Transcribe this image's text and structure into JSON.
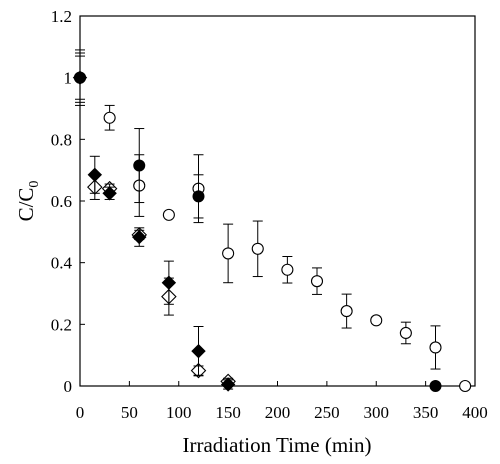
{
  "chart_data": {
    "type": "scatter",
    "title": "",
    "xlabel": "Irradiation Time  (min)",
    "ylabel_main": "C/C",
    "ylabel_sub": "0",
    "xlim": [
      0,
      400
    ],
    "ylim": [
      0,
      1.2
    ],
    "x_ticks": [
      "0",
      "50",
      "100",
      "150",
      "200",
      "250",
      "300",
      "350",
      "400"
    ],
    "y_ticks": [
      "0",
      "0.2",
      "0.4",
      "0.6",
      "0.8",
      "1",
      "1.2"
    ],
    "grid": false,
    "legend": "none",
    "series": [
      {
        "marker": "open-circle",
        "points": [
          {
            "x": 0,
            "y": 1.0,
            "err": 0.08
          },
          {
            "x": 30,
            "y": 0.87,
            "err": 0.04
          },
          {
            "x": 60,
            "y": 0.65,
            "err": 0.1
          },
          {
            "x": 90,
            "y": 0.555,
            "err": 0.008
          },
          {
            "x": 120,
            "y": 0.64,
            "err": 0.11
          },
          {
            "x": 150,
            "y": 0.43,
            "err": 0.095
          },
          {
            "x": 180,
            "y": 0.445,
            "err": 0.09
          },
          {
            "x": 210,
            "y": 0.377,
            "err": 0.043
          },
          {
            "x": 240,
            "y": 0.34,
            "err": 0.043
          },
          {
            "x": 270,
            "y": 0.243,
            "err": 0.055
          },
          {
            "x": 300,
            "y": 0.213,
            "err": 0.01
          },
          {
            "x": 330,
            "y": 0.172,
            "err": 0.035
          },
          {
            "x": 360,
            "y": 0.125,
            "err": 0.07
          },
          {
            "x": 390,
            "y": 0.0,
            "err": 0
          }
        ]
      },
      {
        "marker": "filled-circle",
        "points": [
          {
            "x": 0,
            "y": 1.0,
            "err": 0.07
          },
          {
            "x": 60,
            "y": 0.715,
            "err": 0.12
          },
          {
            "x": 120,
            "y": 0.615,
            "err": 0.07
          },
          {
            "x": 360,
            "y": 0.0,
            "err": 0
          }
        ]
      },
      {
        "marker": "filled-diamond",
        "points": [
          {
            "x": 0,
            "y": 1.0,
            "err": 0.09
          },
          {
            "x": 15,
            "y": 0.685,
            "err": 0.06
          },
          {
            "x": 30,
            "y": 0.625,
            "err": 0.02
          },
          {
            "x": 60,
            "y": 0.483,
            "err": 0.03
          },
          {
            "x": 90,
            "y": 0.335,
            "err": 0.07
          },
          {
            "x": 120,
            "y": 0.113,
            "err": 0.08
          },
          {
            "x": 150,
            "y": 0.005,
            "err": 0.015
          }
        ]
      },
      {
        "marker": "open-diamond",
        "points": [
          {
            "x": 15,
            "y": 0.645,
            "err": 0.04
          },
          {
            "x": 30,
            "y": 0.64,
            "err": 0.015
          },
          {
            "x": 60,
            "y": 0.49,
            "err": 0.015
          },
          {
            "x": 90,
            "y": 0.29,
            "err": 0.06
          },
          {
            "x": 120,
            "y": 0.05,
            "err": 0.015
          },
          {
            "x": 150,
            "y": 0.015,
            "err": 0.01
          }
        ]
      }
    ]
  }
}
